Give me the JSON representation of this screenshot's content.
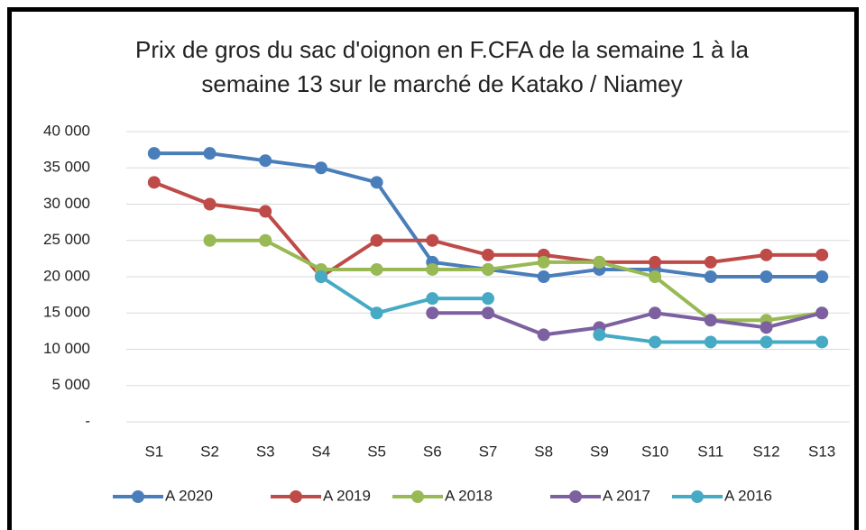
{
  "chart_data": {
    "type": "line",
    "title": "Prix de gros du sac d'oignon en F.CFA de la semaine 1 à la semaine 13 sur le marché de Katako / Niamey",
    "categories": [
      "S1",
      "S2",
      "S3",
      "S4",
      "S5",
      "S6",
      "S7",
      "S8",
      "S9",
      "S10",
      "S11",
      "S12",
      "S13"
    ],
    "series": [
      {
        "name": "A 2020",
        "color": "#4a7ebb",
        "values": [
          37000,
          37000,
          36000,
          35000,
          33000,
          22000,
          21000,
          20000,
          21000,
          21000,
          20000,
          20000,
          20000
        ]
      },
      {
        "name": "A 2019",
        "color": "#be4b48",
        "values": [
          33000,
          30000,
          29000,
          20000,
          25000,
          25000,
          23000,
          23000,
          22000,
          22000,
          22000,
          23000,
          23000
        ]
      },
      {
        "name": "A 2018",
        "color": "#98b954",
        "values": [
          null,
          25000,
          25000,
          21000,
          21000,
          21000,
          21000,
          22000,
          22000,
          20000,
          14000,
          14000,
          15000
        ]
      },
      {
        "name": "A 2017",
        "color": "#7d60a0",
        "values": [
          null,
          null,
          null,
          null,
          null,
          15000,
          15000,
          12000,
          13000,
          15000,
          14000,
          13000,
          15000
        ]
      },
      {
        "name": "A 2016",
        "color": "#46aac5",
        "values": [
          null,
          null,
          null,
          20000,
          15000,
          17000,
          17000,
          null,
          12000,
          11000,
          11000,
          11000,
          11000
        ]
      }
    ],
    "ylim": [
      0,
      40000
    ],
    "yticks": [
      {
        "value": 0,
        "label": "-"
      },
      {
        "value": 5000,
        "label": "5 000"
      },
      {
        "value": 10000,
        "label": "10 000"
      },
      {
        "value": 15000,
        "label": "15 000"
      },
      {
        "value": 20000,
        "label": "20 000"
      },
      {
        "value": 25000,
        "label": "25 000"
      },
      {
        "value": 30000,
        "label": "30 000"
      },
      {
        "value": 35000,
        "label": "35 000"
      },
      {
        "value": 40000,
        "label": "40 000"
      }
    ],
    "grid": true,
    "legend": "bottom"
  }
}
